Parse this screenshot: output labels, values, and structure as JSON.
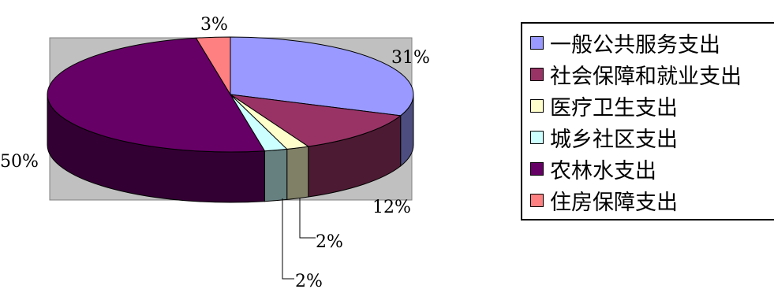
{
  "chart_data": {
    "type": "pie",
    "categories": [
      "一般公共服务支出",
      "社会保障和就业支出",
      "医疗卫生支出",
      "城乡社区支出",
      "农林水支出",
      "住房保障支出"
    ],
    "values": [
      31,
      12,
      2,
      2,
      50,
      3
    ],
    "data_labels": [
      "31%",
      "12%",
      "2%",
      "2%",
      "50%",
      "3%"
    ],
    "colors": [
      "#9999ff",
      "#993366",
      "#ffffcc",
      "#ccffff",
      "#660066",
      "#ff8080"
    ],
    "plot_background": "#c0c0c0",
    "legend_position": "right",
    "three_d": true
  }
}
